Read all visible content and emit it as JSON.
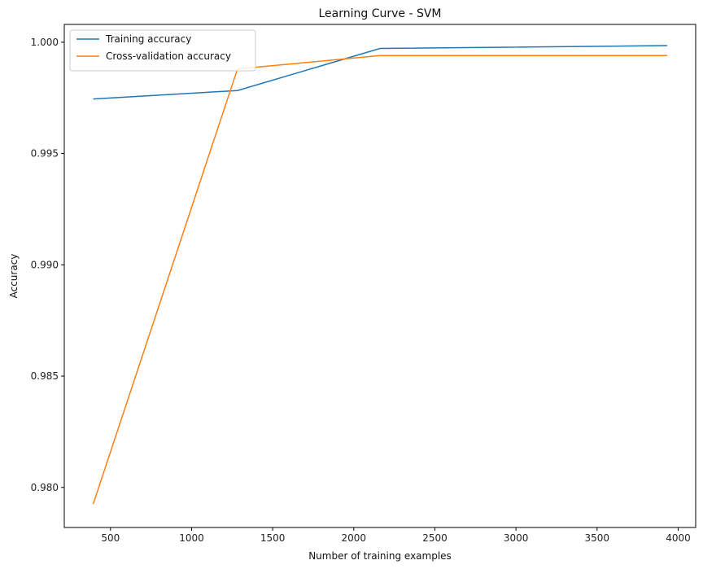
{
  "chart_data": {
    "type": "line",
    "title": "Learning Curve - SVM",
    "xlabel": "Number of training examples",
    "ylabel": "Accuracy",
    "xlim": [
      215,
      4108
    ],
    "ylim": [
      0.9782,
      1.0008
    ],
    "xticks": [
      500,
      1000,
      1500,
      2000,
      2500,
      3000,
      3500,
      4000
    ],
    "yticks": [
      0.98,
      0.985,
      0.99,
      0.995,
      1.0
    ],
    "x": [
      393,
      1283,
      2162,
      3933
    ],
    "series": [
      {
        "name": "Training accuracy",
        "color": "#1f77b4",
        "values": [
          0.99745,
          0.99783,
          0.99972,
          0.99985
        ]
      },
      {
        "name": "Cross-validation accuracy",
        "color": "#ff7f0e",
        "values": [
          0.97925,
          0.9988,
          0.9994,
          0.9994
        ]
      }
    ],
    "legend": "top-left",
    "grid": false
  }
}
